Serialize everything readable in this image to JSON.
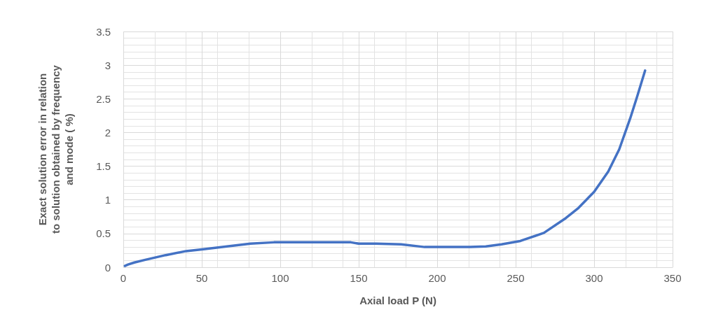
{
  "chart_data": {
    "type": "line",
    "xlabel": "Axial load P (N)",
    "ylabel": "Exact solution error in relation to solution obtained by frequency and mode ( %)",
    "xlim": [
      0,
      350
    ],
    "xticks": [
      0,
      50,
      100,
      150,
      200,
      250,
      300,
      350
    ],
    "ylim": [
      0,
      3.5
    ],
    "yticks": [
      0,
      0.5,
      1,
      1.5,
      2,
      2.5,
      3,
      3.5
    ],
    "grid": true,
    "marker": "none",
    "line_style": "solid",
    "series": [
      {
        "color": "#4472c4",
        "x": [
          1,
          3,
          7,
          14,
          27,
          40,
          52,
          66,
          81,
          96,
          120,
          145,
          150,
          161,
          177,
          192,
          221,
          231,
          241,
          253,
          268,
          282,
          290,
          300,
          309,
          316,
          323,
          327.5,
          332.5
        ],
        "values": [
          0.02,
          0.04,
          0.07,
          0.11,
          0.18,
          0.24,
          0.27,
          0.31,
          0.35,
          0.37,
          0.37,
          0.37,
          0.35,
          0.35,
          0.34,
          0.3,
          0.3,
          0.31,
          0.34,
          0.39,
          0.51,
          0.73,
          0.88,
          1.12,
          1.42,
          1.75,
          2.21,
          2.54,
          2.92
        ]
      }
    ]
  }
}
